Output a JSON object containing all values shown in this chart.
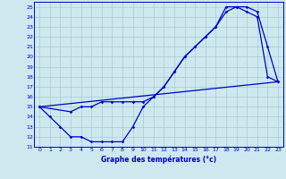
{
  "xlabel": "Graphe des températures (°c)",
  "xlim": [
    -0.5,
    23.5
  ],
  "ylim": [
    11,
    25.5
  ],
  "xticks": [
    0,
    1,
    2,
    3,
    4,
    5,
    6,
    7,
    8,
    9,
    10,
    11,
    12,
    13,
    14,
    15,
    16,
    17,
    18,
    19,
    20,
    21,
    22,
    23
  ],
  "yticks": [
    11,
    12,
    13,
    14,
    15,
    16,
    17,
    18,
    19,
    20,
    21,
    22,
    23,
    24,
    25
  ],
  "bg_color": "#cde9ef",
  "grid_color": "#aacccc",
  "line_color": "#0000cc",
  "line1_x": [
    0,
    1,
    2,
    3,
    4,
    5,
    6,
    7,
    8,
    9,
    10,
    11,
    12,
    13,
    14,
    15,
    16,
    17,
    18,
    19,
    20,
    21,
    22,
    23
  ],
  "line1_y": [
    15,
    14,
    13,
    12,
    12,
    11.5,
    11.5,
    11.5,
    11.5,
    13,
    15,
    16,
    17,
    18.5,
    20,
    21,
    22,
    23,
    25,
    25,
    24.5,
    24,
    18,
    17.5
  ],
  "line2_x": [
    0,
    3,
    4,
    5,
    6,
    7,
    8,
    9,
    10,
    11,
    12,
    13,
    14,
    15,
    16,
    17,
    18,
    19,
    20,
    21,
    22,
    23
  ],
  "line2_y": [
    15,
    14.5,
    15,
    15,
    15.5,
    15.5,
    15.5,
    15.5,
    15.5,
    16,
    17,
    18.5,
    20,
    21,
    22,
    23,
    24.5,
    25,
    25,
    24.5,
    21,
    17.5
  ],
  "line3_x": [
    0,
    23
  ],
  "line3_y": [
    15,
    17.5
  ]
}
